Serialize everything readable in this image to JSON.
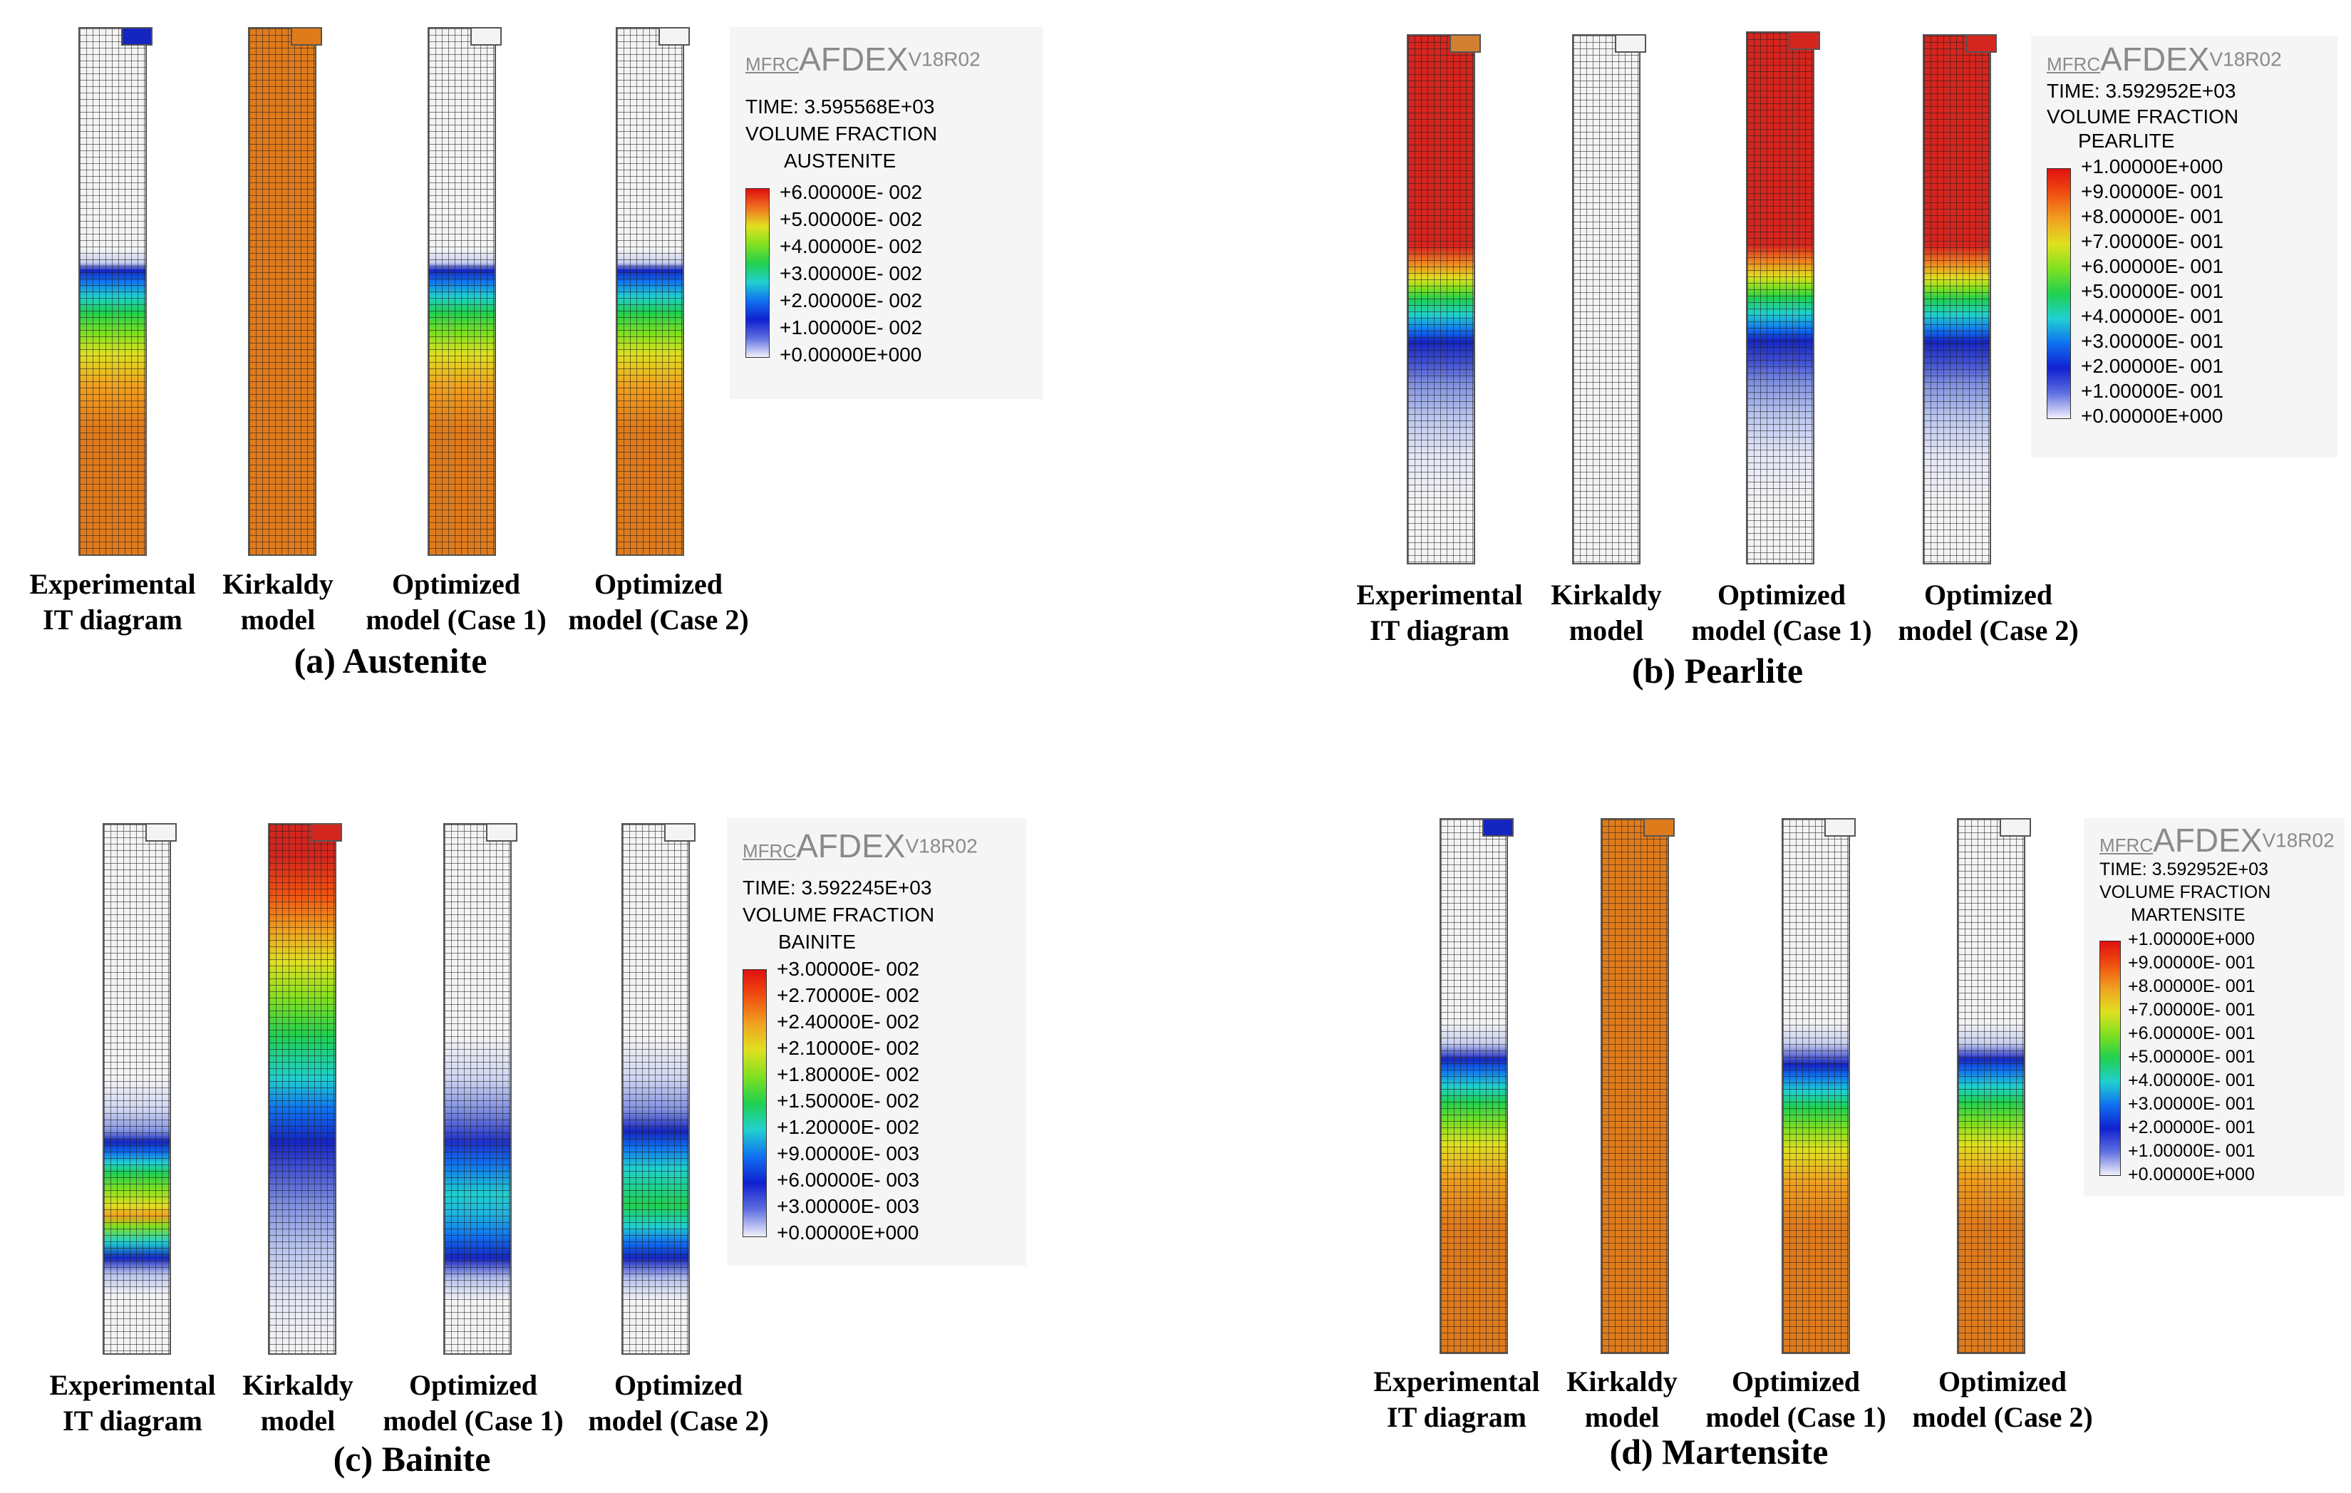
{
  "colors": {
    "fem_white": "#f4f4f4",
    "fem_orange": "#e07b1c",
    "fem_red": "#d4261e",
    "fem_blue": "#1525c0",
    "fem_lightblue": "#b8c4ee",
    "legend_scale": [
      "#f0f0fa",
      "#6070e0",
      "#1020d0",
      "#1070f0",
      "#20d0d0",
      "#20d050",
      "#80e020",
      "#e0e020",
      "#f0a020",
      "#f05010",
      "#e01010"
    ]
  },
  "columns": [
    "Experimental\nIT diagram",
    "Kirkaldy\nmodel",
    "Optimized\nmodel (Case 1)",
    "Optimized\nmodel (Case 2)"
  ],
  "panels": [
    {
      "title": "(a) Austenite",
      "labels": {
        "c0": [
          "Experimental",
          "IT diagram"
        ],
        "c1": [
          "Kirkaldy",
          "model"
        ],
        "c2": [
          "Optimized",
          "model (Case 1)"
        ],
        "c3": [
          "Optimized",
          "model (Case 2)"
        ]
      },
      "legend": {
        "logo_mfrc": "MFRC",
        "logo_afdex": "AFDEX",
        "logo_version": "V18R02",
        "time": "TIME: 3.595568E+03",
        "quantity": "VOLUME FRACTION",
        "phase": "AUSTENITE",
        "ticks": [
          "+6.00000E- 002",
          "+5.00000E- 002",
          "+4.00000E- 002",
          "+3.00000E- 002",
          "+2.00000E- 002",
          "+1.00000E- 002",
          "+0.00000E+000"
        ]
      }
    },
    {
      "title": "(b) Pearlite",
      "labels": {
        "c0": [
          "Experimental",
          "IT diagram"
        ],
        "c1": [
          "Kirkaldy",
          "model"
        ],
        "c2": [
          "Optimized",
          "model (Case 1)"
        ],
        "c3": [
          "Optimized",
          "model (Case 2)"
        ]
      },
      "legend": {
        "logo_mfrc": "MFRC",
        "logo_afdex": "AFDEX",
        "logo_version": "V18R02",
        "time": "TIME: 3.592952E+03",
        "quantity": "VOLUME FRACTION",
        "phase": "PEARLITE",
        "ticks": [
          "+1.00000E+000",
          "+9.00000E- 001",
          "+8.00000E- 001",
          "+7.00000E- 001",
          "+6.00000E- 001",
          "+5.00000E- 001",
          "+4.00000E- 001",
          "+3.00000E- 001",
          "+2.00000E- 001",
          "+1.00000E- 001",
          "+0.00000E+000"
        ]
      }
    },
    {
      "title": "(c) Bainite",
      "labels": {
        "c0": [
          "Experimental",
          "IT diagram"
        ],
        "c1": [
          "Kirkaldy",
          "model"
        ],
        "c2": [
          "Optimized",
          "model (Case 1)"
        ],
        "c3": [
          "Optimized",
          "model (Case 2)"
        ]
      },
      "legend": {
        "logo_mfrc": "MFRC",
        "logo_afdex": "AFDEX",
        "logo_version": "V18R02",
        "time": "TIME: 3.592245E+03",
        "quantity": "VOLUME FRACTION",
        "phase": "BAINITE",
        "ticks": [
          "+3.00000E- 002",
          "+2.70000E- 002",
          "+2.40000E- 002",
          "+2.10000E- 002",
          "+1.80000E- 002",
          "+1.50000E- 002",
          "+1.20000E- 002",
          "+9.00000E- 003",
          "+6.00000E- 003",
          "+3.00000E- 003",
          "+0.00000E+000"
        ]
      }
    },
    {
      "title": "(d) Martensite",
      "labels": {
        "c0": [
          "Experimental",
          "IT diagram"
        ],
        "c1": [
          "Kirkaldy",
          "model"
        ],
        "c2": [
          "Optimized",
          "model (Case 1)"
        ],
        "c3": [
          "Optimized",
          "model (Case 2)"
        ]
      },
      "legend": {
        "logo_mfrc": "MFRC",
        "logo_afdex": "AFDEX",
        "logo_version": "V18R02",
        "time": "TIME: 3.592952E+03",
        "quantity": "VOLUME FRACTION",
        "phase": "MARTENSITE",
        "ticks": [
          "+1.00000E+000",
          "+9.00000E- 001",
          "+8.00000E- 001",
          "+7.00000E- 001",
          "+6.00000E- 001",
          "+5.00000E- 001",
          "+4.00000E- 001",
          "+3.00000E- 001",
          "+2.00000E- 001",
          "+1.00000E- 001",
          "+0.00000E+000"
        ]
      }
    }
  ]
}
